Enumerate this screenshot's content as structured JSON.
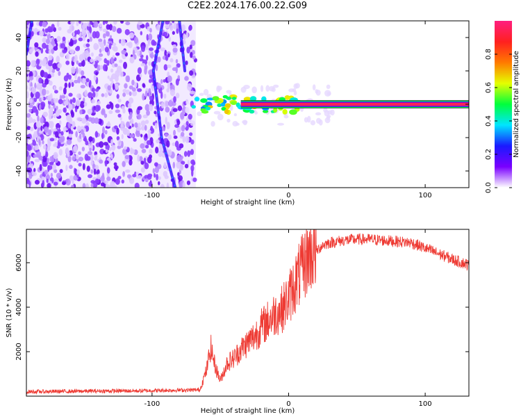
{
  "title": "C2E2.2024.176.00.22.G09",
  "colors": {
    "snr_line": "#ee3a33",
    "axis": "#000000",
    "colorbar": [
      "#ffffff",
      "#7a00ff",
      "#1a1aff",
      "#00e5ff",
      "#00ff3c",
      "#e5ff00",
      "#ff7a00",
      "#ff2020",
      "#ff1f7f"
    ]
  },
  "chart_data": [
    {
      "type": "heatmap",
      "title": "",
      "xlabel": "Height of straight line (km)",
      "ylabel": "Frequency (Hz)",
      "xlim": [
        -192,
        132
      ],
      "ylim": [
        -50,
        50
      ],
      "x_ticks": [
        -100,
        0,
        100
      ],
      "x_tick_labels": [
        "-100",
        "0",
        "100"
      ],
      "y_ticks": [
        -40,
        -20,
        0,
        20,
        40
      ],
      "y_tick_labels": [
        "-40",
        "-20",
        "0",
        "20",
        "40"
      ],
      "colorbar": {
        "label": "Normalized spectral amplitude",
        "range": [
          0,
          1
        ],
        "ticks": [
          0.0,
          0.2,
          0.4,
          0.6,
          0.8
        ],
        "tick_labels": [
          "0.0",
          "0.2",
          "0.4",
          "0.6",
          "0.8"
        ]
      },
      "regions": [
        {
          "x": [
            -192,
            -68
          ],
          "freq": [
            -50,
            50
          ],
          "amplitude": 0.12,
          "kind": "noise"
        },
        {
          "x": [
            -70,
            8
          ],
          "freq": [
            -4,
            4
          ],
          "amplitude": 0.55,
          "kind": "transition"
        },
        {
          "x": [
            -35,
            132
          ],
          "freq": [
            -1,
            1
          ],
          "amplitude": 0.95,
          "kind": "carrier"
        }
      ],
      "streaks": [
        {
          "points": [
            [
              -188,
              50
            ],
            [
              -192,
              30
            ]
          ]
        },
        {
          "points": [
            [
              -92,
              50
            ],
            [
              -99,
              20
            ],
            [
              -93,
              -20
            ],
            [
              -83,
              -50
            ]
          ]
        },
        {
          "points": [
            [
              -80,
              50
            ],
            [
              -76,
              20
            ]
          ]
        }
      ]
    },
    {
      "type": "line",
      "title": "",
      "xlabel": "Height of straight line (km)",
      "ylabel": "SNR (10 * v/v)",
      "xlim": [
        -192,
        132
      ],
      "ylim": [
        0,
        7500
      ],
      "x_ticks": [
        -100,
        0,
        100
      ],
      "x_tick_labels": [
        "-100",
        "0",
        "100"
      ],
      "y_ticks": [
        2000,
        4000,
        6000
      ],
      "y_tick_labels": [
        "2000",
        "4000",
        "6000"
      ],
      "series": [
        {
          "x": [
            -192,
            -170,
            -140,
            -110,
            -80,
            -65,
            -60,
            -57,
            -54,
            -50,
            -45,
            -40,
            -35,
            -30,
            -25,
            -20,
            -15,
            -10,
            -5,
            0,
            5,
            10,
            15,
            20,
            25,
            30,
            40,
            50,
            60,
            70,
            80,
            90,
            100,
            110,
            120,
            132
          ],
          "y": [
            200,
            210,
            230,
            240,
            270,
            280,
            1200,
            2200,
            1400,
            700,
            1500,
            1700,
            2100,
            2400,
            2700,
            3100,
            3400,
            3700,
            3900,
            4400,
            5100,
            5700,
            6400,
            6500,
            6800,
            6900,
            7000,
            7050,
            7050,
            7000,
            6950,
            6900,
            6650,
            6400,
            6150,
            5900
          ]
        }
      ]
    }
  ]
}
